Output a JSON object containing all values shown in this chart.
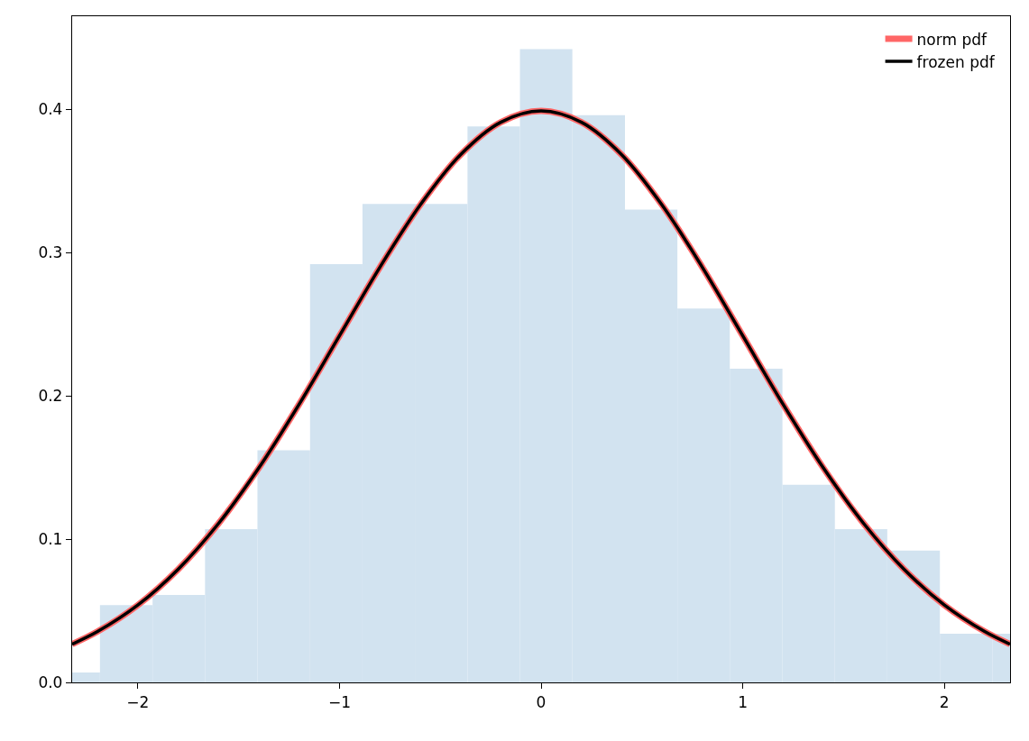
{
  "chart_data": {
    "type": "histogram",
    "bins": [
      -2.448,
      -2.188,
      -1.927,
      -1.667,
      -1.407,
      -1.146,
      -0.886,
      -0.626,
      -0.365,
      -0.105,
      0.155,
      0.416,
      0.676,
      0.936,
      1.197,
      1.457,
      1.717,
      1.978,
      2.238,
      2.498
    ],
    "values": [
      0.007,
      0.054,
      0.061,
      0.107,
      0.162,
      0.292,
      0.334,
      0.334,
      0.388,
      0.442,
      0.396,
      0.33,
      0.261,
      0.219,
      0.138,
      0.107,
      0.092,
      0.034,
      0.034
    ],
    "color": "#d2e3f0",
    "series": [
      {
        "type": "line",
        "name": "norm pdf",
        "color": "#ff6666",
        "x": [
          -2.326,
          -2.2,
          -2.0,
          -1.8,
          -1.6,
          -1.4,
          -1.2,
          -1.0,
          -0.8,
          -0.6,
          -0.4,
          -0.2,
          0,
          0.2,
          0.4,
          0.6,
          0.8,
          1.0,
          1.2,
          1.4,
          1.6,
          1.8,
          2.0,
          2.2,
          2.326
        ],
        "values": [
          0.0267,
          0.0355,
          0.054,
          0.079,
          0.1109,
          0.1497,
          0.1942,
          0.242,
          0.2897,
          0.3332,
          0.3683,
          0.391,
          0.3989,
          0.391,
          0.3683,
          0.3332,
          0.2897,
          0.242,
          0.1942,
          0.1497,
          0.1109,
          0.079,
          0.054,
          0.0355,
          0.0267
        ]
      },
      {
        "type": "line",
        "name": "frozen pdf",
        "color": "#000000",
        "x": [
          -2.326,
          -2.2,
          -2.0,
          -1.8,
          -1.6,
          -1.4,
          -1.2,
          -1.0,
          -0.8,
          -0.6,
          -0.4,
          -0.2,
          0,
          0.2,
          0.4,
          0.6,
          0.8,
          1.0,
          1.2,
          1.4,
          1.6,
          1.8,
          2.0,
          2.2,
          2.326
        ],
        "values": [
          0.0267,
          0.0355,
          0.054,
          0.079,
          0.1109,
          0.1497,
          0.1942,
          0.242,
          0.2897,
          0.3332,
          0.3683,
          0.391,
          0.3989,
          0.391,
          0.3683,
          0.3332,
          0.2897,
          0.242,
          0.1942,
          0.1497,
          0.1109,
          0.079,
          0.054,
          0.0355,
          0.0267
        ]
      }
    ],
    "xlim": [
      -2.326,
      2.326
    ],
    "xticks": [
      {
        "value": -2,
        "label": "−2"
      },
      {
        "value": -1,
        "label": "−1"
      },
      0,
      1,
      2
    ],
    "ylim": [
      0,
      0.465
    ],
    "yticks": [
      {
        "value": 0,
        "label": "0.0"
      },
      0.1,
      0.2,
      0.3,
      0.4
    ],
    "grid": false,
    "legend": "top right"
  }
}
